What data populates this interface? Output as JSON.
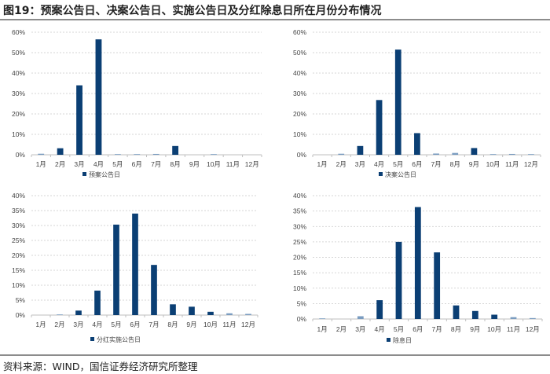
{
  "figure": {
    "title": "图19：预案公告日、决案公告日、实施公告日及分红除息日所在月份分布情况",
    "source": "资料来源：WIND，国信证券经济研究所整理"
  },
  "colors": {
    "bar": "#0b3f74",
    "grid": "#c8c8c8",
    "axis": "#bfbfbf",
    "rule": "#8c8c8c"
  },
  "chart_data": [
    {
      "type": "bar",
      "title": "",
      "legend": [
        "预案公告日"
      ],
      "legend_position": "bottom",
      "categories": [
        "1月",
        "2月",
        "3月",
        "4月",
        "5月",
        "6月",
        "7月",
        "8月",
        "9月",
        "10月",
        "11月",
        "12月"
      ],
      "series": [
        {
          "name": "预案公告日",
          "values": [
            0.5,
            3.2,
            34.0,
            56.5,
            0.2,
            0.1,
            0.4,
            4.3,
            0.0,
            0.3,
            0.0,
            0.0
          ]
        }
      ],
      "xlabel": "",
      "ylabel": "",
      "ylim": [
        0,
        60
      ],
      "ystep": 10,
      "yticks": [
        "0%",
        "10%",
        "20%",
        "30%",
        "40%",
        "50%",
        "60%"
      ],
      "grid": true
    },
    {
      "type": "bar",
      "title": "",
      "legend": [
        "决案公告日"
      ],
      "legend_position": "bottom",
      "categories": [
        "1月",
        "2月",
        "3月",
        "4月",
        "5月",
        "6月",
        "7月",
        "8月",
        "9月",
        "10月",
        "11月",
        "12月"
      ],
      "series": [
        {
          "name": "决案公告日",
          "values": [
            0.0,
            0.5,
            4.3,
            26.8,
            51.5,
            10.6,
            0.6,
            0.9,
            3.3,
            0.2,
            0.4,
            0.1
          ]
        }
      ],
      "xlabel": "",
      "ylabel": "",
      "ylim": [
        0,
        60
      ],
      "ystep": 10,
      "yticks": [
        "0%",
        "10%",
        "20%",
        "30%",
        "40%",
        "50%",
        "60%"
      ],
      "grid": true
    },
    {
      "type": "bar",
      "title": "",
      "legend": [
        "分红实施公告日"
      ],
      "legend_position": "bottom",
      "categories": [
        "1月",
        "2月",
        "3月",
        "4月",
        "5月",
        "6月",
        "7月",
        "8月",
        "9月",
        "10月",
        "11月",
        "12月"
      ],
      "series": [
        {
          "name": "分红实施公告日",
          "values": [
            0.0,
            0.1,
            1.5,
            8.2,
            30.3,
            34.0,
            16.8,
            3.6,
            2.8,
            1.1,
            0.6,
            0.4
          ]
        }
      ],
      "xlabel": "",
      "ylabel": "",
      "ylim": [
        0,
        40
      ],
      "ystep": 5,
      "yticks": [
        "0%",
        "5%",
        "10%",
        "15%",
        "20%",
        "25%",
        "30%",
        "35%",
        "40%"
      ],
      "grid": true
    },
    {
      "type": "bar",
      "title": "",
      "legend": [
        "除息日"
      ],
      "legend_position": "bottom",
      "categories": [
        "1月",
        "2月",
        "3月",
        "4月",
        "5月",
        "6月",
        "7月",
        "8月",
        "9月",
        "10月",
        "11月",
        "12月"
      ],
      "series": [
        {
          "name": "除息日",
          "values": [
            0.1,
            0.0,
            0.9,
            6.1,
            25.0,
            36.3,
            21.6,
            4.4,
            2.6,
            1.4,
            0.6,
            0.3
          ]
        }
      ],
      "xlabel": "",
      "ylabel": "",
      "ylim": [
        0,
        40
      ],
      "ystep": 5,
      "yticks": [
        "0%",
        "5%",
        "10%",
        "15%",
        "20%",
        "25%",
        "30%",
        "35%",
        "40%"
      ],
      "grid": true
    }
  ]
}
